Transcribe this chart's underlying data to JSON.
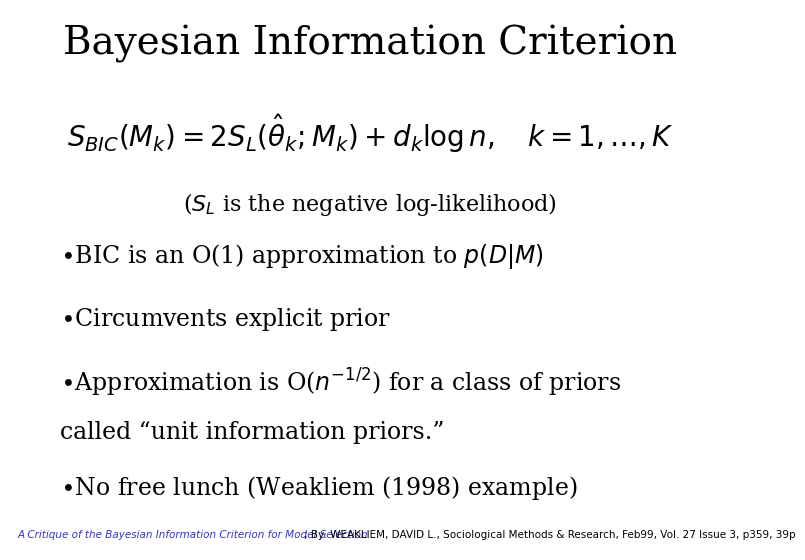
{
  "title": "Bayesian Information Criterion",
  "formula": "$S_{BIC}(M_k) = 2S_L(\\hat{\\theta}_k; M_k) + d_k \\log n, \\quad k = 1, \\ldots, K$",
  "subtitle": "($S_L$ is the negative log-likelihood)",
  "bullet1": "$\\bullet$BIC is an O(1) approximation to $p(D|M)$",
  "bullet2": "$\\bullet$Circumvents explicit prior",
  "bullet3a": "$\\bullet$Approximation is O($n^{-1/2}$) for a class of priors",
  "bullet3b": "called “unit information priors.”",
  "bullet4": "$\\bullet$No free lunch (Weakliem (1998) example)",
  "footer_link": "A Critique of the Bayesian Information Criterion for Model Selection",
  "footer_rest": "; By: WEAKLIEM, DAVID L., Sociological Methods & Research, Feb99, Vol. 27 Issue 3, p359, 39p",
  "background_color": "#ffffff",
  "title_color": "#000000",
  "footer_color_link": "#3333cc",
  "footer_color_rest": "#000000",
  "footer_bg": "#c8e8e0",
  "title_fontsize": 28,
  "formula_fontsize": 20,
  "subtitle_fontsize": 16,
  "bullet_fontsize": 17,
  "footer_fontsize": 7.5
}
